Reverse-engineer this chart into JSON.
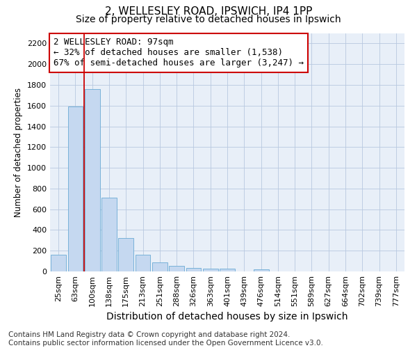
{
  "title1": "2, WELLESLEY ROAD, IPSWICH, IP4 1PP",
  "title2": "Size of property relative to detached houses in Ipswich",
  "xlabel": "Distribution of detached houses by size in Ipswich",
  "ylabel": "Number of detached properties",
  "categories": [
    "25sqm",
    "63sqm",
    "100sqm",
    "138sqm",
    "175sqm",
    "213sqm",
    "251sqm",
    "288sqm",
    "326sqm",
    "363sqm",
    "401sqm",
    "439sqm",
    "476sqm",
    "514sqm",
    "551sqm",
    "589sqm",
    "627sqm",
    "664sqm",
    "702sqm",
    "739sqm",
    "777sqm"
  ],
  "values": [
    160,
    1590,
    1760,
    710,
    320,
    160,
    90,
    55,
    35,
    25,
    25,
    0,
    20,
    0,
    0,
    0,
    0,
    0,
    0,
    0,
    0
  ],
  "bar_color": "#c5d8f0",
  "bar_edgecolor": "#6aaad4",
  "vline_x": 1.5,
  "vline_color": "#cc0000",
  "annotation_text": "2 WELLESLEY ROAD: 97sqm\n← 32% of detached houses are smaller (1,538)\n67% of semi-detached houses are larger (3,247) →",
  "annotation_box_color": "#cc0000",
  "ylim": [
    0,
    2300
  ],
  "yticks": [
    0,
    200,
    400,
    600,
    800,
    1000,
    1200,
    1400,
    1600,
    1800,
    2000,
    2200
  ],
  "grid_color": "#b8c8e0",
  "bg_color": "#e8eff8",
  "footnote": "Contains HM Land Registry data © Crown copyright and database right 2024.\nContains public sector information licensed under the Open Government Licence v3.0.",
  "title1_fontsize": 11,
  "title2_fontsize": 10,
  "xlabel_fontsize": 10,
  "ylabel_fontsize": 8.5,
  "tick_fontsize": 8,
  "annot_fontsize": 9,
  "footnote_fontsize": 7.5
}
